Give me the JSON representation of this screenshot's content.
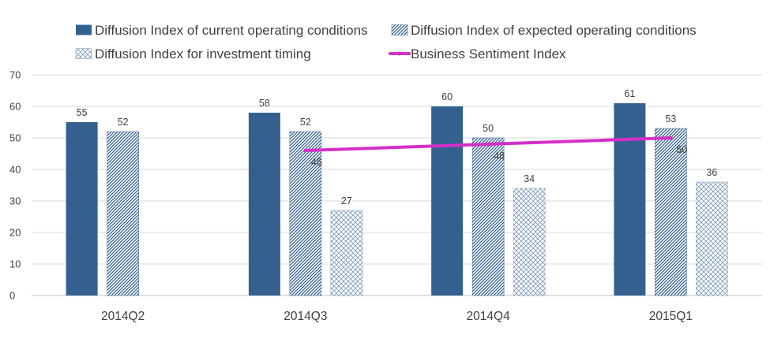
{
  "chart_data": {
    "type": "bar",
    "title": "",
    "xlabel": "",
    "ylabel": "",
    "categories": [
      "2014Q2",
      "2014Q3",
      "2014Q4",
      "2015Q1"
    ],
    "ylim": [
      0,
      70
    ],
    "yticks": [
      0,
      10,
      20,
      30,
      40,
      50,
      60,
      70
    ],
    "grid": true,
    "legend_position": "top",
    "series": [
      {
        "name": "Diffusion Index of current operating conditions",
        "kind": "bar",
        "pattern": "solid",
        "color": "#34608f",
        "values": [
          55,
          58,
          60,
          61
        ]
      },
      {
        "name": "Diffusion Index of expected operating conditions",
        "kind": "bar",
        "pattern": "diagonal",
        "color": "#34608f",
        "values": [
          52,
          52,
          50,
          53
        ]
      },
      {
        "name": "Diffusion Index for investment timing",
        "kind": "bar",
        "pattern": "crosshatch",
        "color": "#7f9cbb",
        "values": [
          null,
          27,
          34,
          36
        ]
      },
      {
        "name": "Business Sentiment Index",
        "kind": "line",
        "color": "#d42fc7",
        "values": [
          null,
          46,
          48,
          50
        ]
      }
    ]
  }
}
